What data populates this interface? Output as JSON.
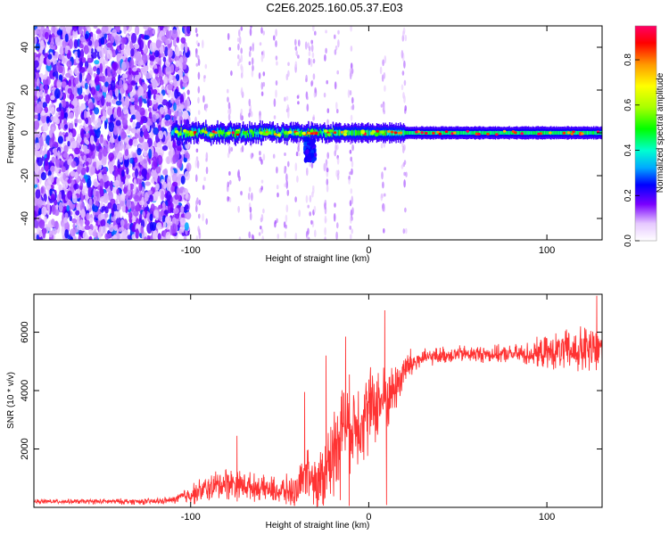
{
  "title": "C2E6.2025.160.05.37.E03",
  "chart_data": [
    {
      "type": "heatmap",
      "xlabel": "Height of straight line (km)",
      "ylabel": "Frequency (Hz)",
      "xlim": [
        -188,
        131
      ],
      "ylim": [
        -50,
        50
      ],
      "xticks": [
        -100,
        0,
        100
      ],
      "yticks": [
        -40,
        -20,
        0,
        20,
        40
      ],
      "grid": false,
      "colorbar": {
        "label": "Normalized spectral amplitude",
        "range": [
          0,
          0.95
        ],
        "ticks": [
          0.0,
          0.2,
          0.4,
          0.6,
          0.8
        ]
      },
      "description_regions": [
        {
          "x_range": [
            -188,
            -101
          ],
          "content": "broadband noise, amplitude ~0.1-0.25 across all frequencies"
        },
        {
          "x_range": [
            -110,
            20
          ],
          "content": "signal band near 0 Hz, width ~±3 Hz, amplitude ~0.3-0.6 with peaks ~0.9; dip to about -12 Hz near x=-33"
        },
        {
          "x_range": [
            20,
            131
          ],
          "content": "narrow band centered at 0 Hz, amplitude ~0.45 core, peaks ~0.9"
        }
      ]
    },
    {
      "type": "line",
      "xlabel": "Height of straight line (km)",
      "ylabel": "SNR (10 * v/v)",
      "xlim": [
        -188,
        131
      ],
      "ylim": [
        0,
        7300
      ],
      "xticks": [
        -100,
        0,
        100
      ],
      "yticks": [
        2000,
        4000,
        6000
      ],
      "grid": false,
      "series": [
        {
          "color": "#ff3333",
          "trend": {
            "x": [
              -188,
              -120,
              -110,
              -100,
              -90,
              -80,
              -70,
              -60,
              -50,
              -40,
              -35,
              -30,
              -20,
              -15,
              -10,
              -5,
              0,
              5,
              10,
              15,
              20,
              25,
              30,
              40,
              50,
              60,
              70,
              80,
              90,
              100,
              110,
              120,
              131
            ],
            "y": [
              200,
              200,
              250,
              450,
              650,
              850,
              750,
              650,
              550,
              550,
              1200,
              600,
              1800,
              3000,
              2800,
              3000,
              3300,
              3600,
              3700,
              4100,
              4700,
              4950,
              5100,
              5200,
              5250,
              5250,
              5250,
              5250,
              5250,
              5300,
              5350,
              5350,
              5400
            ]
          },
          "noise": {
            "x": [
              -188,
              -110,
              -100,
              -80,
              -60,
              -40,
              -30,
              -20,
              0,
              20,
              30,
              80,
              110,
              131
            ],
            "amplitude": [
              60,
              100,
              300,
              500,
              350,
              500,
              900,
              1300,
              1300,
              600,
              250,
              250,
              600,
              900
            ]
          },
          "peaks": [
            {
              "x": -74,
              "y": 2450
            },
            {
              "x": -36,
              "y": 3950
            },
            {
              "x": -24,
              "y": 5200
            },
            {
              "x": -13,
              "y": 5850
            },
            {
              "x": 9,
              "y": 6750
            },
            {
              "x": 128,
              "y": 7250
            }
          ],
          "dips": [
            {
              "x": -31,
              "y": 100
            },
            {
              "x": -11,
              "y": 50
            },
            {
              "x": 10,
              "y": 80
            },
            {
              "x": -16,
              "y": 250
            }
          ]
        }
      ]
    }
  ]
}
